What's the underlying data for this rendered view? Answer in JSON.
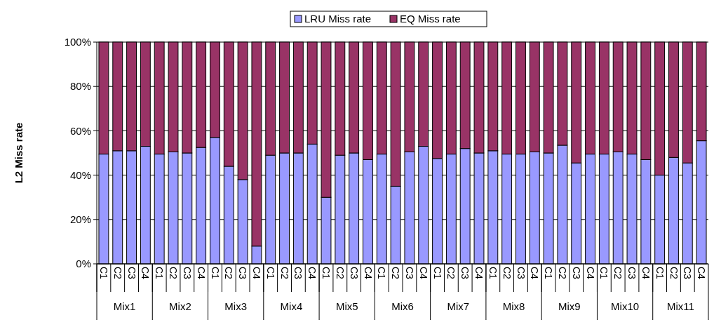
{
  "chart_data": {
    "type": "bar",
    "stacked": true,
    "ylabel": "L2 Miss rate",
    "categories": [
      "C1",
      "C2",
      "C3",
      "C4",
      "C1",
      "C2",
      "C3",
      "C4",
      "C1",
      "C2",
      "C3",
      "C4",
      "C1",
      "C2",
      "C3",
      "C4",
      "C1",
      "C2",
      "C3",
      "C4",
      "C1",
      "C2",
      "C3",
      "C4",
      "C1",
      "C2",
      "C3",
      "C4",
      "C1",
      "C2",
      "C3",
      "C4",
      "C1",
      "C2",
      "C3",
      "C4",
      "C1",
      "C2",
      "C3",
      "C4",
      "C1",
      "C2",
      "C3",
      "C4"
    ],
    "annotations": [
      "Mix1",
      "Mix2",
      "Mix3",
      "Mix4",
      "Mix5",
      "Mix6",
      "Mix7",
      "Mix8",
      "Mix9",
      "Mix10",
      "Mix11"
    ],
    "series": [
      {
        "name": "LRU Miss rate",
        "color": "#9999ff",
        "values": [
          49.5,
          51,
          51,
          53,
          49.5,
          50.5,
          50,
          52.5,
          57,
          44,
          38,
          8,
          49,
          50,
          50,
          54,
          30,
          49,
          50,
          47,
          49.5,
          35,
          50.5,
          53,
          47.5,
          49.5,
          52,
          50,
          51,
          49.5,
          49.5,
          50.5,
          50,
          53.5,
          45.5,
          49.5,
          49.5,
          50.5,
          49.5,
          47,
          40,
          48,
          45.5,
          55.5
        ]
      },
      {
        "name": "EQ Miss rate",
        "color": "#993366",
        "values": [
          50.5,
          49,
          49,
          47,
          50.5,
          49.5,
          50,
          47.5,
          43,
          56,
          62,
          92,
          51,
          50,
          50,
          46,
          70,
          51,
          50,
          53,
          50.5,
          65,
          49.5,
          47,
          52.5,
          50.5,
          48,
          50,
          49,
          50.5,
          50.5,
          49.5,
          50,
          46.5,
          54.5,
          50.5,
          50.5,
          49.5,
          50.5,
          53,
          60,
          52,
          54.5,
          44.5
        ]
      }
    ],
    "ylim": [
      0,
      100
    ],
    "yticks": [
      {
        "value": 0,
        "label": "0%"
      },
      {
        "value": 20,
        "label": "20%"
      },
      {
        "value": 40,
        "label": "40%"
      },
      {
        "value": 60,
        "label": "60%"
      },
      {
        "value": 80,
        "label": "80%"
      },
      {
        "value": 100,
        "label": "100%"
      }
    ],
    "grid": "y",
    "legend": "top"
  }
}
